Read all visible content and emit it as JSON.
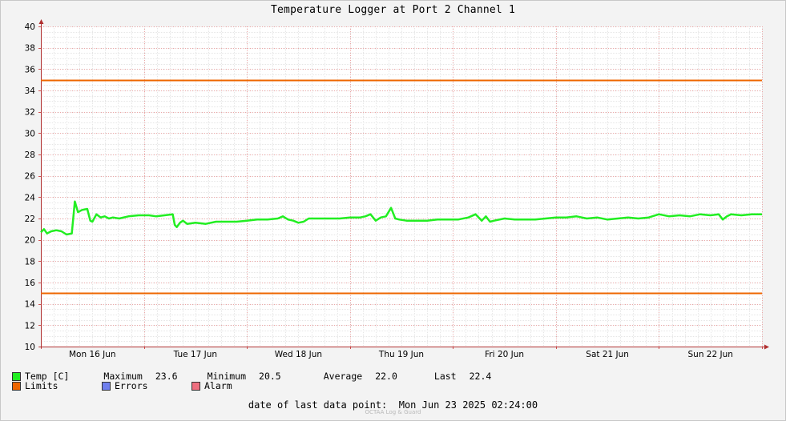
{
  "title": "Temperature Logger at Port 2 Channel 1",
  "chart_data": {
    "type": "line",
    "title": "Temperature Logger at Port 2 Channel 1",
    "ylim": [
      10,
      40
    ],
    "yticks": [
      10,
      12,
      14,
      16,
      18,
      20,
      22,
      24,
      26,
      28,
      30,
      32,
      34,
      36,
      38,
      40
    ],
    "xlim": [
      0,
      7.0
    ],
    "x_unit": "days from Mon 15 Jun 12:00",
    "xtick_labels": [
      {
        "x": 0.5,
        "label": "Mon 16 Jun"
      },
      {
        "x": 1.5,
        "label": "Tue 17 Jun"
      },
      {
        "x": 2.5,
        "label": "Wed 18 Jun"
      },
      {
        "x": 3.5,
        "label": "Thu 19 Jun"
      },
      {
        "x": 4.5,
        "label": "Fri 20 Jun"
      },
      {
        "x": 5.5,
        "label": "Sat 21 Jun"
      },
      {
        "x": 6.5,
        "label": "Sun 22 Jun"
      }
    ],
    "grid": true,
    "limits": {
      "upper": 35,
      "lower": 15
    },
    "series": [
      {
        "name": "Temp [C]",
        "color": "#22ee22",
        "x": [
          0.0,
          0.03,
          0.06,
          0.1,
          0.15,
          0.2,
          0.25,
          0.3,
          0.33,
          0.36,
          0.4,
          0.45,
          0.48,
          0.5,
          0.54,
          0.58,
          0.62,
          0.66,
          0.7,
          0.76,
          0.85,
          0.95,
          1.05,
          1.12,
          1.2,
          1.28,
          1.3,
          1.32,
          1.35,
          1.38,
          1.42,
          1.5,
          1.6,
          1.7,
          1.8,
          1.9,
          2.0,
          2.1,
          2.2,
          2.3,
          2.35,
          2.4,
          2.45,
          2.5,
          2.55,
          2.6,
          2.7,
          2.8,
          2.9,
          3.0,
          3.1,
          3.15,
          3.2,
          3.25,
          3.3,
          3.35,
          3.4,
          3.44,
          3.48,
          3.55,
          3.65,
          3.75,
          3.85,
          3.95,
          4.05,
          4.15,
          4.22,
          4.28,
          4.32,
          4.36,
          4.4,
          4.5,
          4.6,
          4.7,
          4.8,
          4.9,
          5.0,
          5.1,
          5.2,
          5.3,
          5.4,
          5.5,
          5.6,
          5.7,
          5.8,
          5.9,
          6.0,
          6.1,
          6.2,
          6.3,
          6.4,
          6.5,
          6.58,
          6.62,
          6.66,
          6.7,
          6.8,
          6.9,
          7.0
        ],
        "values": [
          20.7,
          21.0,
          20.6,
          20.8,
          20.9,
          20.8,
          20.5,
          20.6,
          23.6,
          22.6,
          22.8,
          22.9,
          21.8,
          21.7,
          22.4,
          22.1,
          22.2,
          22.0,
          22.1,
          22.0,
          22.2,
          22.3,
          22.3,
          22.2,
          22.3,
          22.4,
          21.4,
          21.2,
          21.6,
          21.8,
          21.5,
          21.6,
          21.5,
          21.7,
          21.7,
          21.7,
          21.8,
          21.9,
          21.9,
          22.0,
          22.2,
          21.9,
          21.8,
          21.6,
          21.7,
          22.0,
          22.0,
          22.0,
          22.0,
          22.1,
          22.1,
          22.2,
          22.4,
          21.8,
          22.1,
          22.2,
          23.0,
          22.0,
          21.9,
          21.8,
          21.8,
          21.8,
          21.9,
          21.9,
          21.9,
          22.1,
          22.4,
          21.8,
          22.2,
          21.7,
          21.8,
          22.0,
          21.9,
          21.9,
          21.9,
          22.0,
          22.1,
          22.1,
          22.2,
          22.0,
          22.1,
          21.9,
          22.0,
          22.1,
          22.0,
          22.1,
          22.4,
          22.2,
          22.3,
          22.2,
          22.4,
          22.3,
          22.4,
          21.9,
          22.2,
          22.4,
          22.3,
          22.4,
          22.4
        ]
      }
    ]
  },
  "legend": {
    "temp_label": "Temp [C]",
    "temp_color": "#22ee22",
    "limits_label": "Limits",
    "limits_color": "#ee6600",
    "errors_label": "Errors",
    "errors_color": "#6f7fee",
    "alarm_label": "Alarm",
    "alarm_color": "#ee6f7f",
    "maximum_label": "Maximum",
    "maximum_value": "23.6",
    "minimum_label": "Minimum",
    "minimum_value": "20.5",
    "average_label": "Average",
    "average_value": "22.0",
    "last_label": "Last",
    "last_value": "22.4"
  },
  "footer": {
    "label": "date of last data point:",
    "value": "Mon Jun 23 2025 02:24:00"
  },
  "watermark": "OCTAA Log & Guard"
}
